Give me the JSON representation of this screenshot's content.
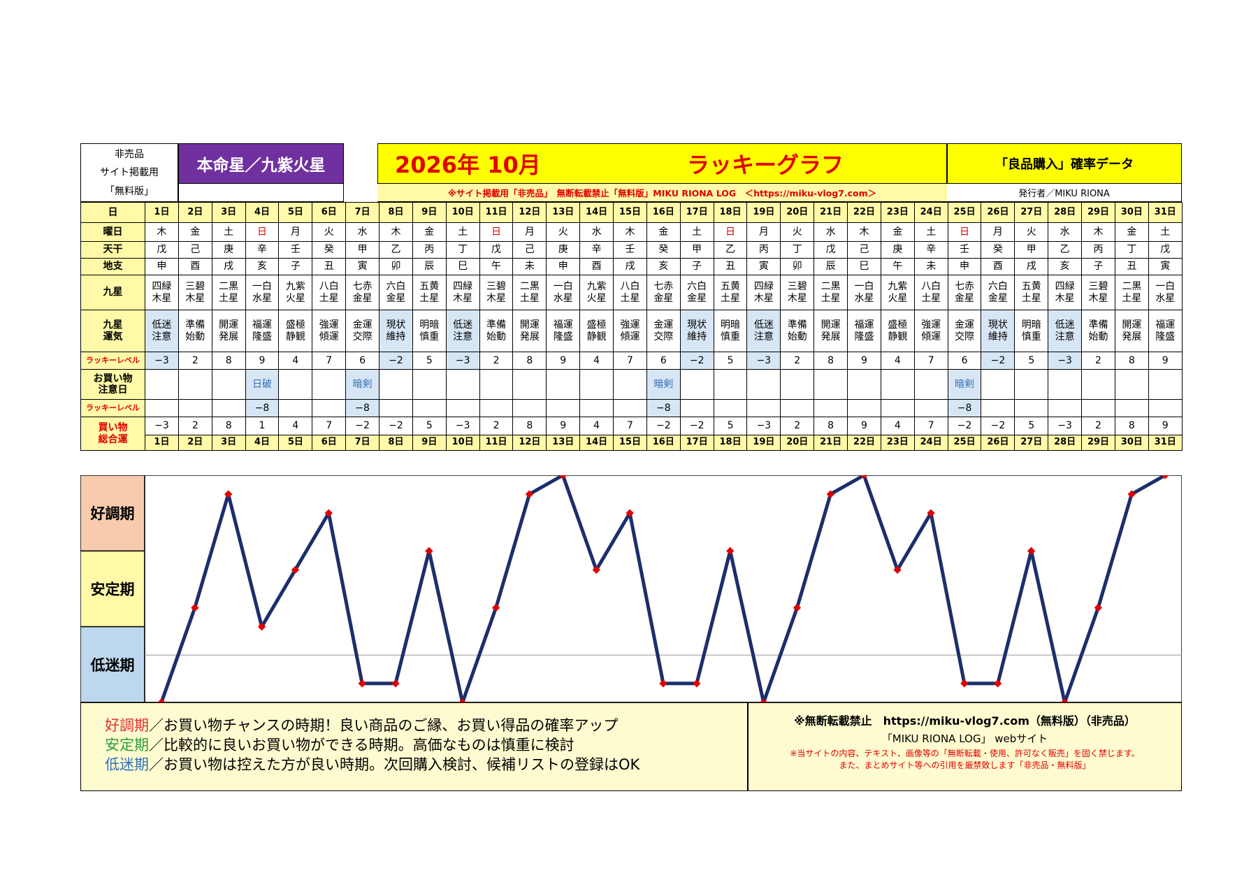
{
  "header": {
    "nonsale_label": "非売品",
    "site_label": "サイト掲載用",
    "free_label": "「無料版」",
    "star_title": "本命星／九紫火星",
    "title_date": "2026年 10月",
    "title_graph": "ラッキーグラフ",
    "right_title": "「良品購入」確率データ",
    "copyright_line": "※サイト掲載用「非売品」　無断転載禁止「無料版」MIKU RIONA LOG　＜https://miku-vlog7.com＞",
    "publisher": "発行者／MIKU RIONA"
  },
  "row_labels": {
    "day": "日",
    "weekday": "曜日",
    "tenkan": "天干",
    "chishi": "地支",
    "kyusei": "九星",
    "luck_a": "九星",
    "luck_b": "運気",
    "level": "ラッキーレベル",
    "caution_a": "お買い物",
    "caution_b": "注意日",
    "level2": "ラッキーレベル",
    "total_a": "買い物",
    "total_b": "総合運"
  },
  "days": [
    "1日",
    "2日",
    "3日",
    "4日",
    "5日",
    "6日",
    "7日",
    "8日",
    "9日",
    "10日",
    "11日",
    "12日",
    "13日",
    "14日",
    "15日",
    "16日",
    "17日",
    "18日",
    "19日",
    "20日",
    "21日",
    "22日",
    "23日",
    "24日",
    "25日",
    "26日",
    "27日",
    "28日",
    "29日",
    "30日",
    "31日"
  ],
  "weekdays": [
    "木",
    "金",
    "土",
    "日",
    "月",
    "火",
    "水",
    "木",
    "金",
    "土",
    "日",
    "月",
    "火",
    "水",
    "木",
    "金",
    "土",
    "日",
    "月",
    "火",
    "水",
    "木",
    "金",
    "土",
    "日",
    "月",
    "火",
    "水",
    "木",
    "金",
    "土"
  ],
  "tenkan": [
    "戊",
    "己",
    "庚",
    "辛",
    "壬",
    "癸",
    "甲",
    "乙",
    "丙",
    "丁",
    "戊",
    "己",
    "庚",
    "辛",
    "壬",
    "癸",
    "甲",
    "乙",
    "丙",
    "丁",
    "戊",
    "己",
    "庚",
    "辛",
    "壬",
    "癸",
    "甲",
    "乙",
    "丙",
    "丁",
    "戊"
  ],
  "chishi": [
    "申",
    "酉",
    "戌",
    "亥",
    "子",
    "丑",
    "寅",
    "卯",
    "辰",
    "巳",
    "午",
    "未",
    "申",
    "酉",
    "戌",
    "亥",
    "子",
    "丑",
    "寅",
    "卯",
    "辰",
    "巳",
    "午",
    "未",
    "申",
    "酉",
    "戌",
    "亥",
    "子",
    "丑",
    "寅"
  ],
  "kyusei_a": [
    "四緑",
    "三碧",
    "二黒",
    "一白",
    "九紫",
    "八白",
    "七赤",
    "六白",
    "五黄",
    "四緑",
    "三碧",
    "二黒",
    "一白",
    "九紫",
    "八白",
    "七赤",
    "六白",
    "五黄",
    "四緑",
    "三碧",
    "二黒",
    "一白",
    "九紫",
    "八白",
    "七赤",
    "六白",
    "五黄",
    "四緑",
    "三碧",
    "二黒",
    "一白"
  ],
  "kyusei_b": [
    "木星",
    "木星",
    "土星",
    "水星",
    "火星",
    "土星",
    "金星",
    "金星",
    "土星",
    "木星",
    "木星",
    "土星",
    "水星",
    "火星",
    "土星",
    "金星",
    "金星",
    "土星",
    "木星",
    "木星",
    "土星",
    "水星",
    "火星",
    "土星",
    "金星",
    "金星",
    "土星",
    "木星",
    "木星",
    "土星",
    "水星"
  ],
  "luck_a": [
    "低迷",
    "準備",
    "開運",
    "福運",
    "盛極",
    "強運",
    "金運",
    "現状",
    "明暗",
    "低迷",
    "準備",
    "開運",
    "福運",
    "盛極",
    "強運",
    "金運",
    "現状",
    "明暗",
    "低迷",
    "準備",
    "開運",
    "福運",
    "盛極",
    "強運",
    "金運",
    "現状",
    "明暗",
    "低迷",
    "準備",
    "開運",
    "福運"
  ],
  "luck_b": [
    "注意",
    "始動",
    "発展",
    "隆盛",
    "静観",
    "傾運",
    "交際",
    "維持",
    "慎重",
    "注意",
    "始動",
    "発展",
    "隆盛",
    "静観",
    "傾運",
    "交際",
    "維持",
    "慎重",
    "注意",
    "始動",
    "発展",
    "隆盛",
    "静観",
    "傾運",
    "交際",
    "維持",
    "慎重",
    "注意",
    "始動",
    "発展",
    "隆盛"
  ],
  "level": [
    "−3",
    "2",
    "8",
    "9",
    "4",
    "7",
    "6",
    "−2",
    "5",
    "−3",
    "2",
    "8",
    "9",
    "4",
    "7",
    "6",
    "−2",
    "5",
    "−3",
    "2",
    "8",
    "9",
    "4",
    "7",
    "6",
    "−2",
    "5",
    "−3",
    "2",
    "8",
    "9"
  ],
  "caution": [
    "",
    "",
    "",
    "日破",
    "",
    "",
    "暗剣",
    "",
    "",
    "",
    "",
    "",
    "",
    "",
    "",
    "暗剣",
    "",
    "",
    "",
    "",
    "",
    "",
    "",
    "",
    "暗剣",
    "",
    "",
    "",
    "",
    "",
    ""
  ],
  "caution_level": [
    "",
    "",
    "",
    "−8",
    "",
    "",
    "−8",
    "",
    "",
    "",
    "",
    "",
    "",
    "",
    "",
    "−8",
    "",
    "",
    "",
    "",
    "",
    "",
    "",
    "",
    "−8",
    "",
    "",
    "",
    "",
    "",
    ""
  ],
  "total": [
    "−3",
    "2",
    "8",
    "1",
    "4",
    "7",
    "−2",
    "−2",
    "5",
    "−3",
    "2",
    "8",
    "9",
    "4",
    "7",
    "−2",
    "−2",
    "5",
    "−3",
    "2",
    "8",
    "9",
    "4",
    "7",
    "−2",
    "−2",
    "5",
    "−3",
    "2",
    "8",
    "9"
  ],
  "chart_data": {
    "type": "line",
    "x": [
      "1日",
      "2日",
      "3日",
      "4日",
      "5日",
      "6日",
      "7日",
      "8日",
      "9日",
      "10日",
      "11日",
      "12日",
      "13日",
      "14日",
      "15日",
      "16日",
      "17日",
      "18日",
      "19日",
      "20日",
      "21日",
      "22日",
      "23日",
      "24日",
      "25日",
      "26日",
      "27日",
      "28日",
      "29日",
      "30日",
      "31日"
    ],
    "series": [
      {
        "values": [
          -3,
          2,
          8,
          1,
          4,
          7,
          -2,
          -2,
          5,
          -3,
          2,
          8,
          9,
          4,
          7,
          -2,
          -2,
          5,
          -3,
          2,
          8,
          9,
          4,
          7,
          -2,
          -2,
          5,
          -3,
          2,
          8,
          9
        ]
      }
    ],
    "ylim": [
      -3,
      9
    ],
    "bands": [
      "好調期",
      "安定期",
      "低迷期"
    ],
    "line_color": "#1c2e6b",
    "marker_color": "#e00000"
  },
  "legend": {
    "good_term": "好調期",
    "good_text": "／お買い物チャンスの時期！良い商品のご縁、お買い得品の確率アップ",
    "stable_term": "安定期",
    "stable_text": "／比較的に良いお買い物ができる時期。高価なものは慎重に検討",
    "low_term": "低迷期",
    "low_text": "／お買い物は控えた方が良い時期。次回購入検討、候補リストの登録はOK"
  },
  "note": {
    "line1": "※無断転載禁止　https://miku-vlog7.com（無料版）（非売品）",
    "line2": "「MIKU RIONA LOG」 webサイト",
    "line3": "※当サイトの内容、テキスト、画像等の「無断転載・使用、許可なく販売」を固く禁じます。",
    "line4": "また、まとめサイト等への引用を厳禁致します「非売品・無料版」"
  },
  "colors": {
    "yellow": "#ffff00",
    "header_purple": "#7030a0",
    "label_yellow": "#fff9a8",
    "low_blue": "#d7e6f4",
    "good_band": "#f8cbad",
    "stable_band": "#fff9a8",
    "low_band": "#bdd7ee",
    "good_text": "#e03030",
    "stable_text": "#2a9d3a",
    "low_text": "#2f6fb8"
  }
}
